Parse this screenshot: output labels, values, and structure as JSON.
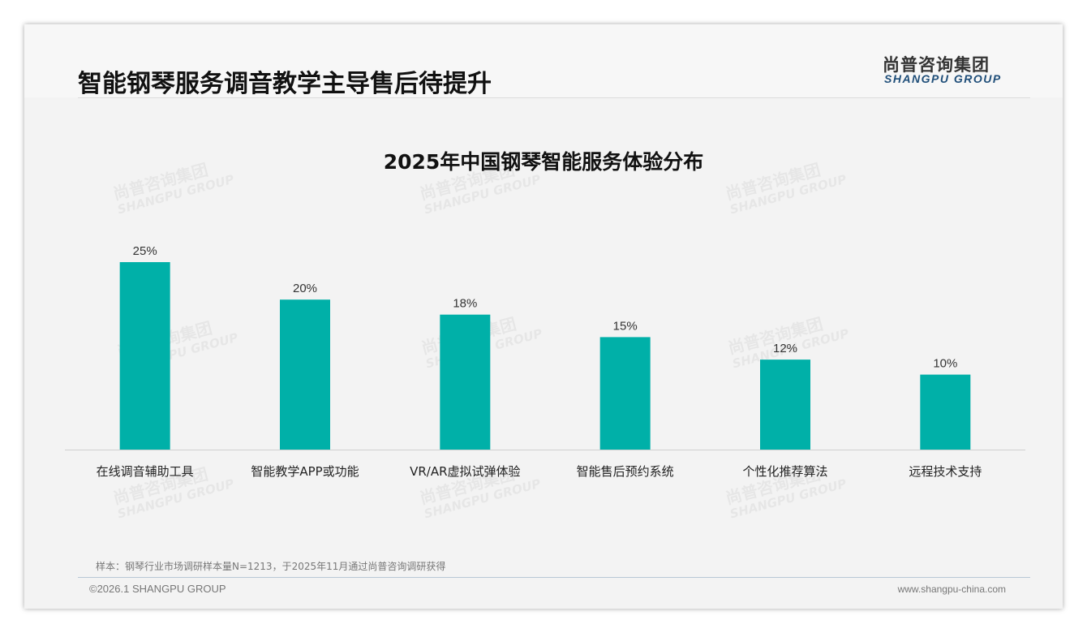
{
  "header": {
    "title": "智能钢琴服务调音教学主导售后待提升",
    "logo_cn": "尚普咨询集团",
    "logo_en": "SHANGPU GROUP"
  },
  "watermark": {
    "cn": "尚普咨询集团",
    "en": "SHANGPU GROUP"
  },
  "chart_data": {
    "type": "bar",
    "title": "2025年中国钢琴智能服务体验分布",
    "categories": [
      "在线调音辅助工具",
      "智能教学APP或功能",
      "VR/AR虚拟试弹体验",
      "智能售后预约系统",
      "个性化推荐算法",
      "远程技术支持"
    ],
    "values": [
      25,
      20,
      18,
      15,
      12,
      10
    ],
    "value_labels": [
      "25%",
      "20%",
      "18%",
      "15%",
      "12%",
      "10%"
    ],
    "ylim": [
      0,
      25
    ],
    "color": "#00b0a8",
    "unit": "%",
    "grid": false
  },
  "footer": {
    "note": "样本：钢琴行业市场调研样本量N=1213，于2025年11月通过尚普咨询调研获得",
    "copyright": "©2026.1 SHANGPU GROUP",
    "url": "www.shangpu-china.com"
  }
}
